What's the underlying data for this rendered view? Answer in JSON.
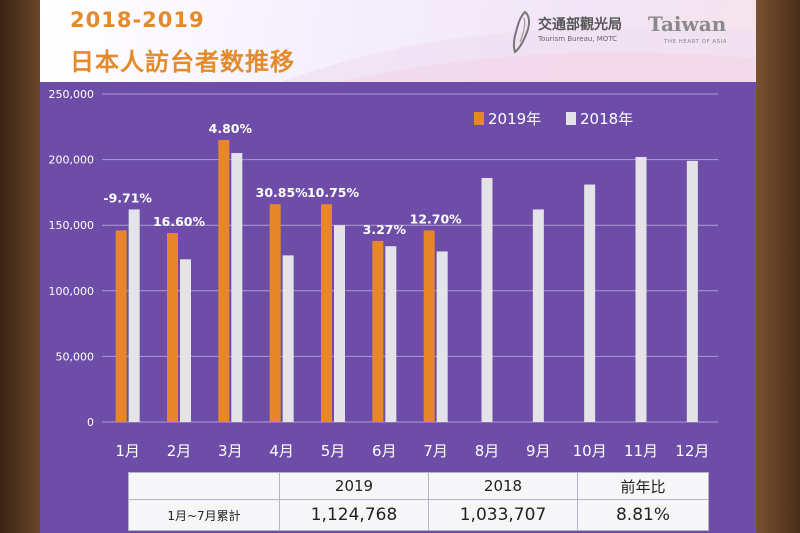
{
  "header": {
    "title_line1": "2018-2019",
    "title_line2": "日本人訪台者数推移",
    "motc_name": "交通部觀光局",
    "motc_sub": "Tourism Bureau, MOTC",
    "taiwan_word": "Taiwan",
    "taiwan_tagline": "THE HEART OF ASIA"
  },
  "colors": {
    "bar_2019": "#e8862a",
    "bar_2018": "#e4e4e8",
    "background": "#6d4da8",
    "title": "#e58a2a"
  },
  "chart_data": {
    "type": "bar",
    "title": "日本人訪台者数推移",
    "categories": [
      "1月",
      "2月",
      "3月",
      "4月",
      "5月",
      "6月",
      "7月",
      "8月",
      "9月",
      "10月",
      "11月",
      "12月"
    ],
    "series": [
      {
        "name": "2019年",
        "values": [
          146000,
          144000,
          215000,
          166000,
          166000,
          138000,
          146000,
          null,
          null,
          null,
          null,
          null
        ]
      },
      {
        "name": "2018年",
        "values": [
          162000,
          124000,
          205000,
          127000,
          150000,
          134000,
          130000,
          186000,
          162000,
          181000,
          202000,
          199000
        ]
      }
    ],
    "growth_labels": [
      "-9.71%",
      "16.60%",
      "4.80%",
      "30.85%",
      "10.75%",
      "3.27%",
      "12.70%"
    ],
    "y_ticks": [
      "0",
      "50,000",
      "100,000",
      "150,000",
      "200,000",
      "250,000"
    ],
    "ylim": [
      0,
      250000
    ],
    "grid": true,
    "legend_position": "top-right"
  },
  "summary": {
    "headers": [
      "2019",
      "2018",
      "前年比"
    ],
    "row_label": "1月~7月累計",
    "values": [
      "1,124,768",
      "1,033,707",
      "8.81%"
    ]
  }
}
